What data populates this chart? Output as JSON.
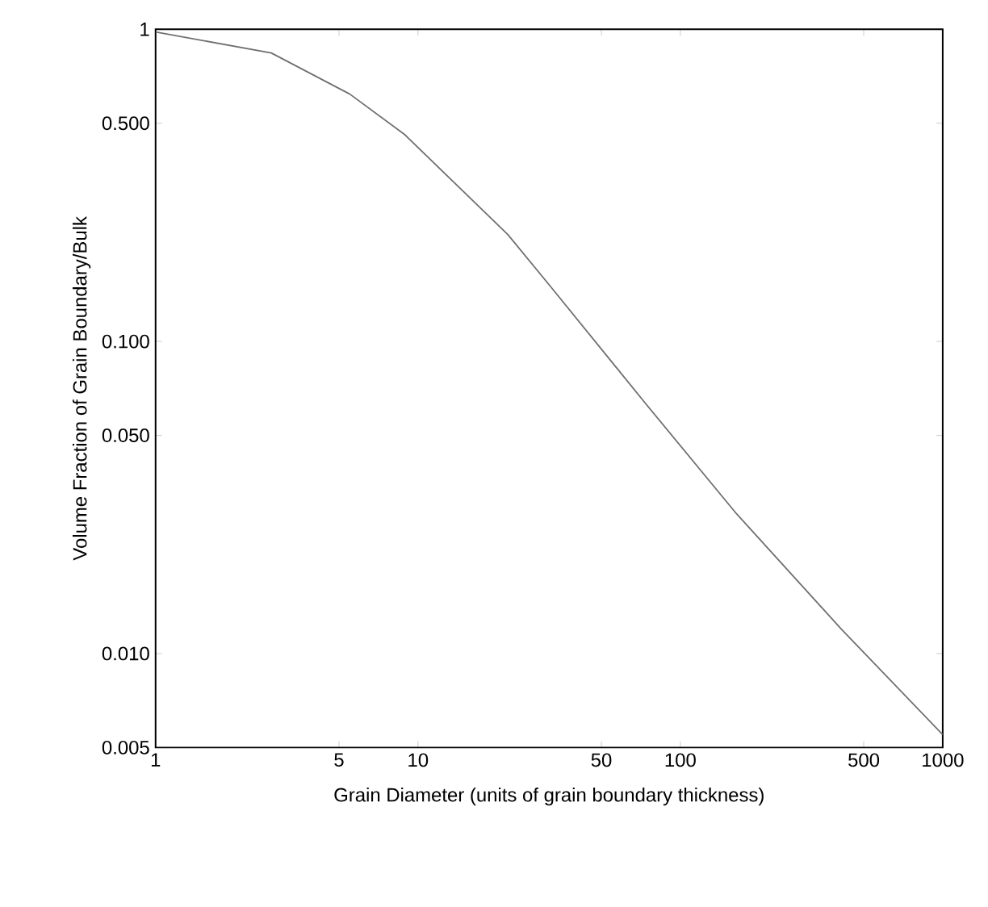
{
  "chart_data": {
    "type": "line",
    "xlabel": "Grain Diameter (units of grain boundary thickness)",
    "ylabel": "Volume Fraction of Grain Boundary/Bulk",
    "log": "xy",
    "grid": false,
    "marker": "none",
    "line_style": "solid",
    "xlim": [
      1,
      1000
    ],
    "ylim": [
      0.005,
      1
    ],
    "xticks": [
      1,
      5,
      10,
      50,
      100,
      500,
      1000
    ],
    "yticks": [
      {
        "value": 0.005,
        "label": "0.005"
      },
      {
        "value": 0.01,
        "label": "0.010"
      },
      {
        "value": 0.05,
        "label": "0.050"
      },
      {
        "value": 0.1,
        "label": "0.100"
      },
      {
        "value": 0.5,
        "label": "0.500"
      },
      1
    ],
    "series": [
      {
        "color": "#707070",
        "x": [
          1,
          2.76,
          5.5,
          8.9,
          22,
          32,
          74,
          164,
          410,
          1000
        ],
        "values": [
          0.98,
          0.84,
          0.62,
          0.46,
          0.22,
          0.15,
          0.063,
          0.028,
          0.012,
          0.0055
        ]
      }
    ]
  }
}
